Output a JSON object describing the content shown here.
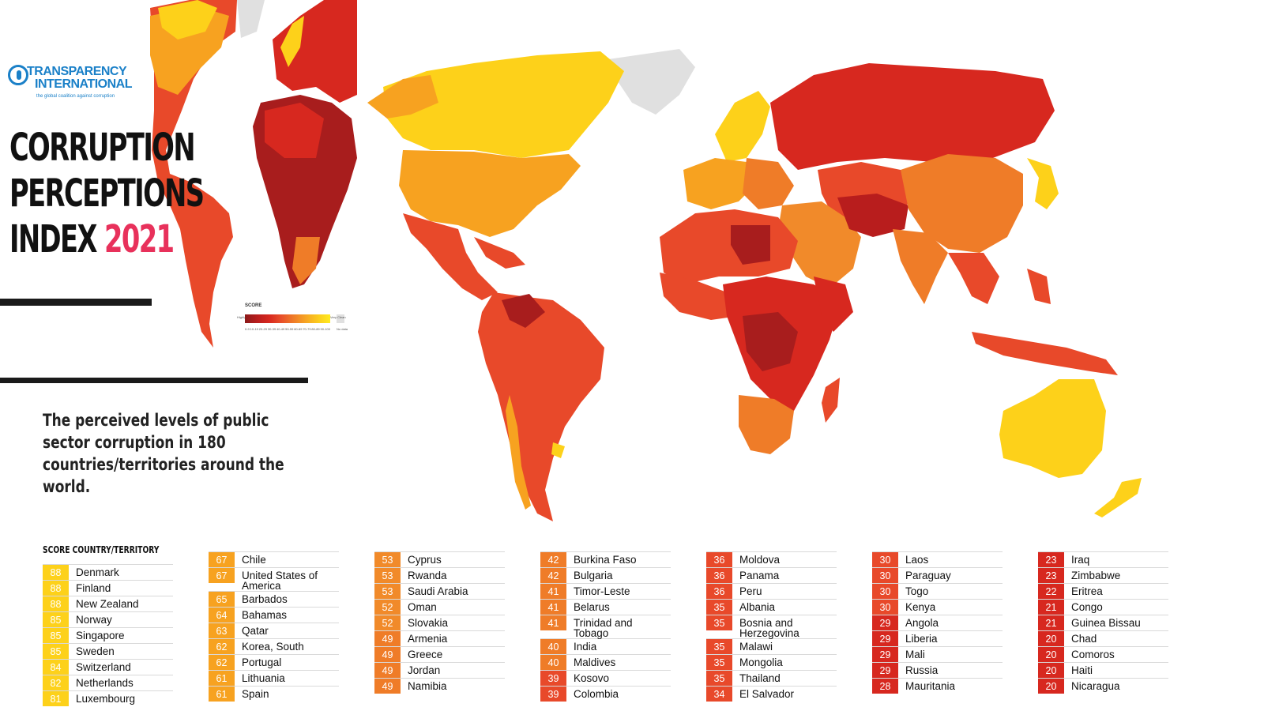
{
  "header": {
    "logo_line1": "TRANSPARENCY",
    "logo_line2": "INTERNATIONAL",
    "logo_tagline": "the global coalition against corruption",
    "title_line1": "CORRUPTION",
    "title_line2": "PERCEPTIONS",
    "title_line3": "INDEX",
    "title_year": "2021",
    "subtitle": "The perceived levels of public sector corruption in 180 countries/territories around the world."
  },
  "legend": {
    "title": "SCORE",
    "low_label": "Highly Corrupt",
    "high_label": "Very Clean",
    "no_data_label": "No data",
    "ticks": [
      "0-9",
      "10-19",
      "20-29",
      "30-39",
      "40-49",
      "50-59",
      "60-69",
      "70-79",
      "80-89",
      "90-100"
    ]
  },
  "colors": {
    "band_80_100": "#fdd11a",
    "band_60_79": "#f7a220",
    "band_50_59": "#f18a2a",
    "band_40_49": "#ef7c28",
    "band_30_39": "#e8492a",
    "band_20_29": "#d7281f",
    "band_10_19": "#a81d1d",
    "no_data": "#e0e0e0",
    "title_accent": "#e8315b",
    "logo_blue": "#1a80c8"
  },
  "table": {
    "header": "SCORE  COUNTRY/TERRITORY",
    "columns": [
      [
        {
          "score": "88",
          "name": "Denmark"
        },
        {
          "score": "88",
          "name": "Finland"
        },
        {
          "score": "88",
          "name": "New Zealand"
        },
        {
          "score": "85",
          "name": "Norway"
        },
        {
          "score": "85",
          "name": "Singapore"
        },
        {
          "score": "85",
          "name": "Sweden"
        },
        {
          "score": "84",
          "name": "Switzerland"
        },
        {
          "score": "82",
          "name": "Netherlands"
        },
        {
          "score": "81",
          "name": "Luxembourg"
        }
      ],
      [
        {
          "score": "67",
          "name": "Chile"
        },
        {
          "score": "67",
          "name": "United States of America"
        },
        {
          "score": "65",
          "name": "Barbados"
        },
        {
          "score": "64",
          "name": "Bahamas"
        },
        {
          "score": "63",
          "name": "Qatar"
        },
        {
          "score": "62",
          "name": "Korea, South"
        },
        {
          "score": "62",
          "name": "Portugal"
        },
        {
          "score": "61",
          "name": "Lithuania"
        },
        {
          "score": "61",
          "name": "Spain"
        }
      ],
      [
        {
          "score": "53",
          "name": "Cyprus"
        },
        {
          "score": "53",
          "name": "Rwanda"
        },
        {
          "score": "53",
          "name": "Saudi Arabia"
        },
        {
          "score": "52",
          "name": "Oman"
        },
        {
          "score": "52",
          "name": "Slovakia"
        },
        {
          "score": "49",
          "name": "Armenia"
        },
        {
          "score": "49",
          "name": "Greece"
        },
        {
          "score": "49",
          "name": "Jordan"
        },
        {
          "score": "49",
          "name": "Namibia"
        }
      ],
      [
        {
          "score": "42",
          "name": "Burkina Faso"
        },
        {
          "score": "42",
          "name": "Bulgaria"
        },
        {
          "score": "41",
          "name": "Timor-Leste"
        },
        {
          "score": "41",
          "name": "Belarus"
        },
        {
          "score": "41",
          "name": "Trinidad and Tobago"
        },
        {
          "score": "40",
          "name": "India"
        },
        {
          "score": "40",
          "name": "Maldives"
        },
        {
          "score": "39",
          "name": "Kosovo"
        },
        {
          "score": "39",
          "name": "Colombia"
        }
      ],
      [
        {
          "score": "36",
          "name": "Moldova"
        },
        {
          "score": "36",
          "name": "Panama"
        },
        {
          "score": "36",
          "name": "Peru"
        },
        {
          "score": "35",
          "name": "Albania"
        },
        {
          "score": "35",
          "name": "Bosnia and Herzegovina"
        },
        {
          "score": "35",
          "name": "Malawi"
        },
        {
          "score": "35",
          "name": "Mongolia"
        },
        {
          "score": "35",
          "name": "Thailand"
        },
        {
          "score": "34",
          "name": "El Salvador"
        }
      ],
      [
        {
          "score": "30",
          "name": "Laos"
        },
        {
          "score": "30",
          "name": "Paraguay"
        },
        {
          "score": "30",
          "name": "Togo"
        },
        {
          "score": "30",
          "name": "Kenya"
        },
        {
          "score": "29",
          "name": "Angola"
        },
        {
          "score": "29",
          "name": "Liberia"
        },
        {
          "score": "29",
          "name": "Mali"
        },
        {
          "score": "29",
          "name": "Russia"
        },
        {
          "score": "28",
          "name": "Mauritania"
        }
      ],
      [
        {
          "score": "23",
          "name": "Iraq"
        },
        {
          "score": "23",
          "name": "Zimbabwe"
        },
        {
          "score": "22",
          "name": "Eritrea"
        },
        {
          "score": "21",
          "name": "Congo"
        },
        {
          "score": "21",
          "name": "Guinea Bissau"
        },
        {
          "score": "20",
          "name": "Chad"
        },
        {
          "score": "20",
          "name": "Comoros"
        },
        {
          "score": "20",
          "name": "Haiti"
        },
        {
          "score": "20",
          "name": "Nicaragua"
        }
      ]
    ]
  }
}
